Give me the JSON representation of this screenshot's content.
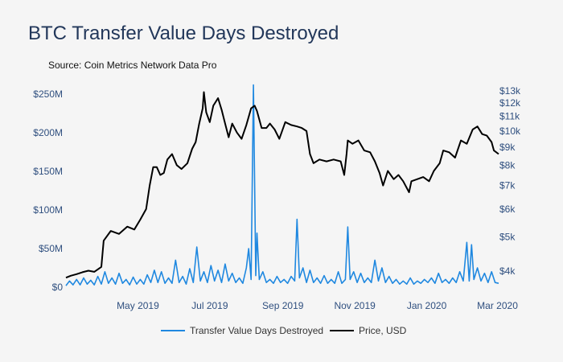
{
  "title": "BTC Transfer Value Days Destroyed",
  "source": "Source: Coin Metrics Network Data Pro",
  "colors": {
    "tvdd": "#1f88e0",
    "price": "#000000",
    "tick": "#2f4f7f",
    "background": "#f5f5f5"
  },
  "chart_data": {
    "type": "line",
    "x_start": "2019-03-01",
    "x_end": "2020-03-02",
    "x_ticks": [
      {
        "date": "2019-05-01",
        "label": "May 2019"
      },
      {
        "date": "2019-07-01",
        "label": "Jul 2019"
      },
      {
        "date": "2019-09-01",
        "label": "Sep 2019"
      },
      {
        "date": "2019-11-01",
        "label": "Nov 2019"
      },
      {
        "date": "2020-01-01",
        "label": "Jan 2020"
      },
      {
        "date": "2020-03-01",
        "label": "Mar 2020"
      }
    ],
    "y_left": {
      "min": 0,
      "max": 250000000,
      "ticks": [
        {
          "value": 0,
          "label": "$0"
        },
        {
          "value": 50000000,
          "label": "$50M"
        },
        {
          "value": 100000000,
          "label": "$100M"
        },
        {
          "value": 150000000,
          "label": "$150M"
        },
        {
          "value": 200000000,
          "label": "$200M"
        },
        {
          "value": 250000000,
          "label": "$250M"
        }
      ]
    },
    "y_right": {
      "scale": "log",
      "min": 3600,
      "max": 13000,
      "ticks": [
        {
          "value": 4000,
          "label": "$4k"
        },
        {
          "value": 5000,
          "label": "$5k"
        },
        {
          "value": 6000,
          "label": "$6k"
        },
        {
          "value": 7000,
          "label": "$7k"
        },
        {
          "value": 8000,
          "label": "$8k"
        },
        {
          "value": 9000,
          "label": "$9k"
        },
        {
          "value": 10000,
          "label": "$10k"
        },
        {
          "value": 11000,
          "label": "$11k"
        },
        {
          "value": 12000,
          "label": "$12k"
        },
        {
          "value": 13000,
          "label": "$13k"
        }
      ]
    },
    "legend": {
      "placement": "bottom",
      "items": [
        "Transfer Value Days Destroyed",
        "Price, USD"
      ]
    },
    "series": [
      {
        "name": "Transfer Value Days Destroyed",
        "axis": "left",
        "points": [
          [
            "2019-03-01",
            2000000
          ],
          [
            "2019-03-04",
            8000000
          ],
          [
            "2019-03-07",
            3000000
          ],
          [
            "2019-03-10",
            10000000
          ],
          [
            "2019-03-13",
            3000000
          ],
          [
            "2019-03-16",
            12000000
          ],
          [
            "2019-03-19",
            4000000
          ],
          [
            "2019-03-22",
            9000000
          ],
          [
            "2019-03-25",
            3000000
          ],
          [
            "2019-03-28",
            14000000
          ],
          [
            "2019-03-31",
            4000000
          ],
          [
            "2019-04-03",
            20000000
          ],
          [
            "2019-04-06",
            5000000
          ],
          [
            "2019-04-09",
            12000000
          ],
          [
            "2019-04-12",
            4000000
          ],
          [
            "2019-04-15",
            18000000
          ],
          [
            "2019-04-18",
            5000000
          ],
          [
            "2019-04-21",
            10000000
          ],
          [
            "2019-04-24",
            3000000
          ],
          [
            "2019-04-27",
            13000000
          ],
          [
            "2019-04-30",
            4000000
          ],
          [
            "2019-05-03",
            10000000
          ],
          [
            "2019-05-06",
            4000000
          ],
          [
            "2019-05-09",
            16000000
          ],
          [
            "2019-05-12",
            6000000
          ],
          [
            "2019-05-15",
            22000000
          ],
          [
            "2019-05-18",
            6000000
          ],
          [
            "2019-05-21",
            20000000
          ],
          [
            "2019-05-24",
            5000000
          ],
          [
            "2019-05-27",
            12000000
          ],
          [
            "2019-05-30",
            5000000
          ],
          [
            "2019-06-02",
            35000000
          ],
          [
            "2019-06-05",
            6000000
          ],
          [
            "2019-06-08",
            14000000
          ],
          [
            "2019-06-11",
            4000000
          ],
          [
            "2019-06-14",
            24000000
          ],
          [
            "2019-06-17",
            6000000
          ],
          [
            "2019-06-20",
            52000000
          ],
          [
            "2019-06-23",
            8000000
          ],
          [
            "2019-06-26",
            20000000
          ],
          [
            "2019-06-29",
            6000000
          ],
          [
            "2019-07-02",
            28000000
          ],
          [
            "2019-07-05",
            8000000
          ],
          [
            "2019-07-08",
            22000000
          ],
          [
            "2019-07-11",
            6000000
          ],
          [
            "2019-07-14",
            30000000
          ],
          [
            "2019-07-17",
            8000000
          ],
          [
            "2019-07-20",
            18000000
          ],
          [
            "2019-07-23",
            6000000
          ],
          [
            "2019-07-26",
            12000000
          ],
          [
            "2019-07-29",
            5000000
          ],
          [
            "2019-08-01",
            25000000
          ],
          [
            "2019-08-03",
            50000000
          ],
          [
            "2019-08-05",
            10000000
          ],
          [
            "2019-08-07",
            262000000
          ],
          [
            "2019-08-09",
            15000000
          ],
          [
            "2019-08-10",
            70000000
          ],
          [
            "2019-08-12",
            10000000
          ],
          [
            "2019-08-15",
            20000000
          ],
          [
            "2019-08-18",
            6000000
          ],
          [
            "2019-08-21",
            10000000
          ],
          [
            "2019-08-24",
            5000000
          ],
          [
            "2019-08-27",
            14000000
          ],
          [
            "2019-08-30",
            6000000
          ],
          [
            "2019-09-02",
            10000000
          ],
          [
            "2019-09-05",
            5000000
          ],
          [
            "2019-09-08",
            14000000
          ],
          [
            "2019-09-11",
            8000000
          ],
          [
            "2019-09-13",
            88000000
          ],
          [
            "2019-09-15",
            12000000
          ],
          [
            "2019-09-18",
            25000000
          ],
          [
            "2019-09-21",
            6000000
          ],
          [
            "2019-09-24",
            22000000
          ],
          [
            "2019-09-27",
            6000000
          ],
          [
            "2019-09-30",
            12000000
          ],
          [
            "2019-10-03",
            5000000
          ],
          [
            "2019-10-06",
            15000000
          ],
          [
            "2019-10-09",
            5000000
          ],
          [
            "2019-10-12",
            10000000
          ],
          [
            "2019-10-15",
            5000000
          ],
          [
            "2019-10-18",
            20000000
          ],
          [
            "2019-10-21",
            5000000
          ],
          [
            "2019-10-24",
            10000000
          ],
          [
            "2019-10-26",
            78000000
          ],
          [
            "2019-10-28",
            10000000
          ],
          [
            "2019-10-31",
            20000000
          ],
          [
            "2019-11-03",
            6000000
          ],
          [
            "2019-11-06",
            18000000
          ],
          [
            "2019-11-09",
            6000000
          ],
          [
            "2019-11-12",
            12000000
          ],
          [
            "2019-11-15",
            6000000
          ],
          [
            "2019-11-18",
            35000000
          ],
          [
            "2019-11-21",
            8000000
          ],
          [
            "2019-11-24",
            25000000
          ],
          [
            "2019-11-27",
            6000000
          ],
          [
            "2019-11-30",
            14000000
          ],
          [
            "2019-12-03",
            5000000
          ],
          [
            "2019-12-06",
            10000000
          ],
          [
            "2019-12-09",
            4000000
          ],
          [
            "2019-12-12",
            8000000
          ],
          [
            "2019-12-15",
            4000000
          ],
          [
            "2019-12-18",
            12000000
          ],
          [
            "2019-12-21",
            4000000
          ],
          [
            "2019-12-24",
            8000000
          ],
          [
            "2019-12-27",
            5000000
          ],
          [
            "2019-12-30",
            10000000
          ],
          [
            "2020-01-02",
            6000000
          ],
          [
            "2020-01-05",
            12000000
          ],
          [
            "2020-01-08",
            5000000
          ],
          [
            "2020-01-11",
            18000000
          ],
          [
            "2020-01-14",
            6000000
          ],
          [
            "2020-01-17",
            10000000
          ],
          [
            "2020-01-20",
            5000000
          ],
          [
            "2020-01-23",
            12000000
          ],
          [
            "2020-01-26",
            6000000
          ],
          [
            "2020-01-29",
            20000000
          ],
          [
            "2020-02-01",
            8000000
          ],
          [
            "2020-02-04",
            58000000
          ],
          [
            "2020-02-06",
            8000000
          ],
          [
            "2020-02-08",
            55000000
          ],
          [
            "2020-02-10",
            10000000
          ],
          [
            "2020-02-13",
            25000000
          ],
          [
            "2020-02-16",
            8000000
          ],
          [
            "2020-02-19",
            18000000
          ],
          [
            "2020-02-22",
            6000000
          ],
          [
            "2020-02-25",
            20000000
          ],
          [
            "2020-02-28",
            6000000
          ],
          [
            "2020-03-02",
            5000000
          ]
        ]
      },
      {
        "name": "Price, USD",
        "axis": "right",
        "points": [
          [
            "2019-03-01",
            3830
          ],
          [
            "2019-03-05",
            3880
          ],
          [
            "2019-03-10",
            3920
          ],
          [
            "2019-03-15",
            3970
          ],
          [
            "2019-03-20",
            4010
          ],
          [
            "2019-03-25",
            3980
          ],
          [
            "2019-03-31",
            4110
          ],
          [
            "2019-04-02",
            4880
          ],
          [
            "2019-04-08",
            5200
          ],
          [
            "2019-04-15",
            5100
          ],
          [
            "2019-04-22",
            5350
          ],
          [
            "2019-04-28",
            5250
          ],
          [
            "2019-05-03",
            5600
          ],
          [
            "2019-05-08",
            6000
          ],
          [
            "2019-05-11",
            7000
          ],
          [
            "2019-05-14",
            7900
          ],
          [
            "2019-05-17",
            7900
          ],
          [
            "2019-05-20",
            7500
          ],
          [
            "2019-05-23",
            7600
          ],
          [
            "2019-05-26",
            8300
          ],
          [
            "2019-05-30",
            8600
          ],
          [
            "2019-06-03",
            8000
          ],
          [
            "2019-06-07",
            7800
          ],
          [
            "2019-06-12",
            8100
          ],
          [
            "2019-06-16",
            8900
          ],
          [
            "2019-06-19",
            9300
          ],
          [
            "2019-06-22",
            10500
          ],
          [
            "2019-06-25",
            11600
          ],
          [
            "2019-06-26",
            12900
          ],
          [
            "2019-06-28",
            11300
          ],
          [
            "2019-07-01",
            10600
          ],
          [
            "2019-07-04",
            11800
          ],
          [
            "2019-07-08",
            12400
          ],
          [
            "2019-07-11",
            11500
          ],
          [
            "2019-07-14",
            10500
          ],
          [
            "2019-07-17",
            9600
          ],
          [
            "2019-07-20",
            10500
          ],
          [
            "2019-07-24",
            9900
          ],
          [
            "2019-07-28",
            9500
          ],
          [
            "2019-08-01",
            10400
          ],
          [
            "2019-08-05",
            11600
          ],
          [
            "2019-08-08",
            11800
          ],
          [
            "2019-08-10",
            11400
          ],
          [
            "2019-08-14",
            10200
          ],
          [
            "2019-08-18",
            10200
          ],
          [
            "2019-08-21",
            10500
          ],
          [
            "2019-08-25",
            10100
          ],
          [
            "2019-08-29",
            9500
          ],
          [
            "2019-09-03",
            10600
          ],
          [
            "2019-09-08",
            10400
          ],
          [
            "2019-09-13",
            10300
          ],
          [
            "2019-09-17",
            10200
          ],
          [
            "2019-09-21",
            10000
          ],
          [
            "2019-09-24",
            8600
          ],
          [
            "2019-09-27",
            8100
          ],
          [
            "2019-10-02",
            8300
          ],
          [
            "2019-10-08",
            8200
          ],
          [
            "2019-10-14",
            8300
          ],
          [
            "2019-10-20",
            8200
          ],
          [
            "2019-10-23",
            7500
          ],
          [
            "2019-10-25",
            8600
          ],
          [
            "2019-10-26",
            9400
          ],
          [
            "2019-10-30",
            9200
          ],
          [
            "2019-11-04",
            9400
          ],
          [
            "2019-11-09",
            8800
          ],
          [
            "2019-11-14",
            8700
          ],
          [
            "2019-11-18",
            8200
          ],
          [
            "2019-11-22",
            7600
          ],
          [
            "2019-11-25",
            7000
          ],
          [
            "2019-11-29",
            7700
          ],
          [
            "2019-12-04",
            7300
          ],
          [
            "2019-12-08",
            7500
          ],
          [
            "2019-12-12",
            7200
          ],
          [
            "2019-12-17",
            6700
          ],
          [
            "2019-12-19",
            7200
          ],
          [
            "2019-12-24",
            7300
          ],
          [
            "2019-12-29",
            7400
          ],
          [
            "2020-01-03",
            7200
          ],
          [
            "2020-01-07",
            7700
          ],
          [
            "2020-01-12",
            8100
          ],
          [
            "2020-01-15",
            8800
          ],
          [
            "2020-01-20",
            8700
          ],
          [
            "2020-01-25",
            8400
          ],
          [
            "2020-01-30",
            9400
          ],
          [
            "2020-02-04",
            9200
          ],
          [
            "2020-02-09",
            10100
          ],
          [
            "2020-02-13",
            10300
          ],
          [
            "2020-02-17",
            9800
          ],
          [
            "2020-02-21",
            9700
          ],
          [
            "2020-02-25",
            9300
          ],
          [
            "2020-02-27",
            8800
          ],
          [
            "2020-03-02",
            8600
          ]
        ]
      }
    ]
  }
}
